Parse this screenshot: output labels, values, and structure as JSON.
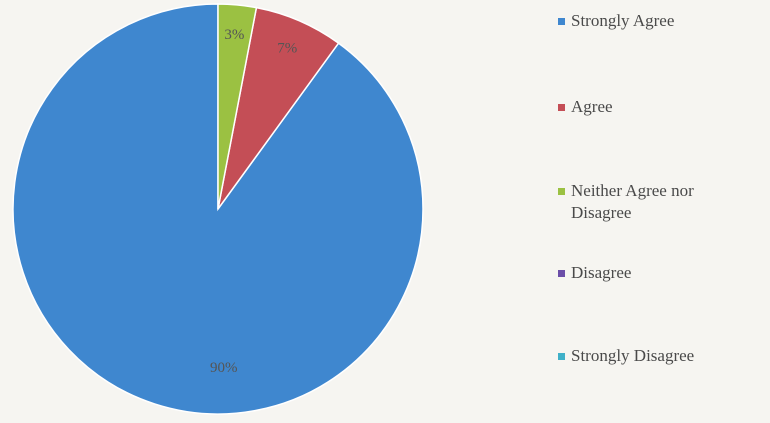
{
  "chart_data": {
    "type": "pie",
    "title": "",
    "legend_position": "right",
    "slices": [
      {
        "label": "Strongly Agree",
        "value": 90,
        "display": "90%",
        "color": "#3f87cf"
      },
      {
        "label": "Agree",
        "value": 7,
        "display": "7%",
        "color": "#c44e56"
      },
      {
        "label": "Neither Agree nor\nDisagree",
        "value": 3,
        "display": "3%",
        "color": "#9bc142"
      },
      {
        "label": "Disagree",
        "value": 0,
        "display": "",
        "color": "#6b4ea8"
      },
      {
        "label": "Strongly Disagree",
        "value": 0,
        "display": "",
        "color": "#3fb0c8"
      }
    ]
  }
}
